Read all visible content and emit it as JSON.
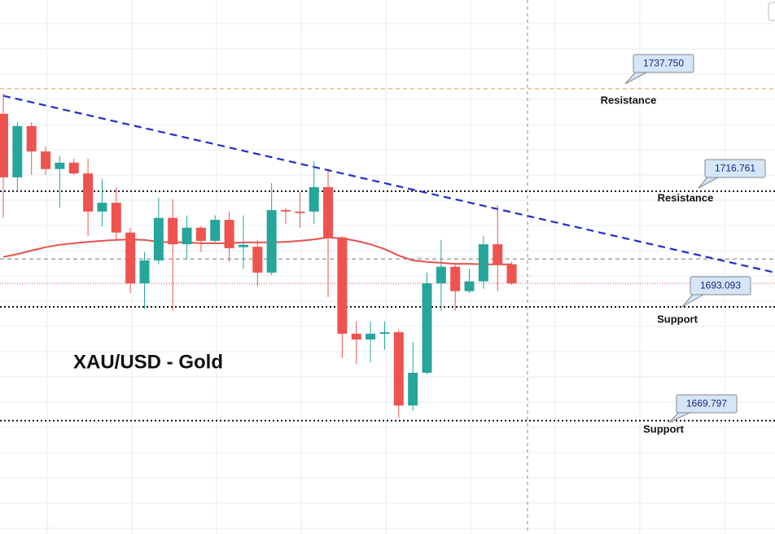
{
  "chart_data": {
    "type": "candlestick",
    "title": "XAU/USD - Gold",
    "ylim": [
      1646.6,
      1755.9
    ],
    "up_color": "#26a69a",
    "down_color": "#ef5350",
    "open": [
      1732.6,
      1719.6,
      1730.1,
      1724.9,
      1721.3,
      1722.6,
      1720.4,
      1712.6,
      1714.4,
      1708.3,
      1697.9,
      1702.6,
      1711.3,
      1705.9,
      1709.3,
      1706.6,
      1710.9,
      1705.3,
      1705.4,
      1700.1,
      1712.9,
      1712.6,
      1712.6,
      1717.6,
      1707.3,
      1687.6,
      1686.4,
      1687.6,
      1687.9,
      1672.9,
      1679.6,
      1697.9,
      1701.3,
      1696.3,
      1698.3,
      1705.9,
      1701.8
    ],
    "high": [
      1736.8,
      1730.9,
      1730.9,
      1725.9,
      1723.9,
      1723.4,
      1723.4,
      1719.3,
      1717.6,
      1709.3,
      1704.3,
      1715.4,
      1715.1,
      1711.8,
      1709.6,
      1711.8,
      1712.6,
      1711.8,
      1706.8,
      1718.4,
      1713.4,
      1716.6,
      1722.9,
      1720.9,
      1707.6,
      1690.1,
      1690.1,
      1690.1,
      1688.4,
      1685.9,
      1700.1,
      1706.8,
      1701.8,
      1700.9,
      1707.6,
      1713.9,
      1702.3
    ],
    "low": [
      1711.3,
      1716.8,
      1720.1,
      1720.1,
      1713.4,
      1720.1,
      1707.6,
      1709.6,
      1706.8,
      1695.9,
      1692.6,
      1701.8,
      1692.3,
      1702.9,
      1704.3,
      1706.3,
      1702.3,
      1700.9,
      1697.3,
      1699.6,
      1710.1,
      1709.3,
      1710.1,
      1695.1,
      1682.6,
      1681.4,
      1681.8,
      1684.3,
      1670.4,
      1671.8,
      1679.3,
      1692.3,
      1692.3,
      1695.9,
      1696.8,
      1696.3,
      1697.6
    ],
    "close": [
      1719.6,
      1730.1,
      1724.9,
      1721.3,
      1722.6,
      1720.4,
      1712.6,
      1714.4,
      1708.3,
      1697.9,
      1702.6,
      1711.3,
      1705.9,
      1709.3,
      1706.6,
      1710.9,
      1705.1,
      1705.8,
      1700.1,
      1712.9,
      1712.6,
      1712.3,
      1717.6,
      1707.3,
      1687.6,
      1686.4,
      1687.6,
      1687.9,
      1672.9,
      1679.6,
      1697.9,
      1701.3,
      1696.3,
      1698.3,
      1705.9,
      1701.8,
      1697.9
    ],
    "moving_average": {
      "color": "#e8514a",
      "values": [
        1703.3,
        1703.9,
        1704.6,
        1705.3,
        1705.8,
        1706.1,
        1706.4,
        1706.6,
        1706.8,
        1706.9,
        1706.8,
        1706.4,
        1706.3,
        1706.3,
        1706.1,
        1706.1,
        1706.1,
        1706.3,
        1706.3,
        1706.3,
        1706.4,
        1706.6,
        1706.9,
        1707.3,
        1707.1,
        1706.6,
        1705.9,
        1704.9,
        1703.6,
        1702.6,
        1702.3,
        1702.1,
        1701.9,
        1701.9,
        1701.8,
        1701.8,
        1701.8
      ]
    },
    "trendline": {
      "color": "#1f2fd0",
      "values": [
        1736.3,
        1700.1
      ]
    },
    "price_line": 1697.9,
    "reference_line": 1702.9,
    "levels": [
      {
        "value": 1737.75,
        "label": "1737.750",
        "name": "Resistance",
        "color": "#f0a050"
      },
      {
        "value": 1716.761,
        "label": "1716.761",
        "name": "Resistance",
        "color": "#111111"
      },
      {
        "value": 1693.093,
        "label": "1693.093",
        "name": "Support",
        "color": "#111111"
      },
      {
        "value": 1669.797,
        "label": "1669.797",
        "name": "Support",
        "color": "#111111"
      }
    ]
  }
}
